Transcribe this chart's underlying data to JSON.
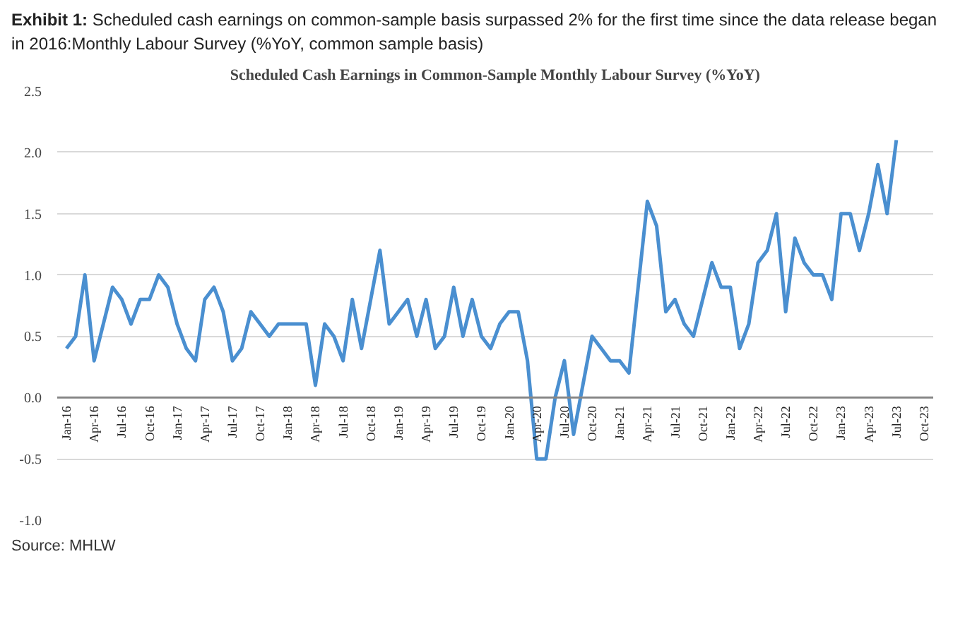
{
  "chart_data": {
    "type": "line",
    "title": "Exhibit 1: Scheduled cash earnings on common-sample basis surpassed 2% for the first time since the data release began in 2016:Monthly Labour Survey (%YoY, common sample basis)",
    "subtitle": "Scheduled Cash Earnings in Common-Sample Monthly Labour Survey (%YoY)",
    "annotations": [
      "Source: MHLW"
    ],
    "categories": [
      "Jan-16",
      null,
      null,
      "Apr-16",
      null,
      null,
      "Jul-16",
      null,
      null,
      "Oct-16",
      null,
      null,
      "Jan-17",
      null,
      null,
      "Apr-17",
      null,
      null,
      "Jul-17",
      null,
      null,
      "Oct-17",
      null,
      null,
      "Jan-18",
      null,
      null,
      "Apr-18",
      null,
      null,
      "Jul-18",
      null,
      null,
      "Oct-18",
      null,
      null,
      "Jan-19",
      null,
      null,
      "Apr-19",
      null,
      null,
      "Jul-19",
      null,
      null,
      "Oct-19",
      null,
      null,
      "Jan-20",
      null,
      null,
      "Apr-20",
      null,
      null,
      "Jul-20",
      null,
      null,
      "Oct-20",
      null,
      null,
      "Jan-21",
      null,
      null,
      "Apr-21",
      null,
      null,
      "Jul-21",
      null,
      null,
      "Oct-21",
      null,
      null,
      "Jan-22",
      null,
      null,
      "Apr-22",
      null,
      null,
      "Jul-22",
      null,
      null,
      "Oct-22",
      null,
      null,
      "Jan-23",
      null,
      null,
      "Apr-23",
      null,
      null,
      "Jul-23",
      null,
      null,
      "Oct-23"
    ],
    "series": [
      {
        "color": "#4a8fd0",
        "values": [
          0.4,
          0.5,
          1.0,
          0.3,
          0.6,
          0.9,
          0.8,
          0.6,
          0.8,
          0.8,
          1.0,
          0.9,
          0.6,
          0.4,
          0.3,
          0.8,
          0.9,
          0.7,
          0.3,
          0.4,
          0.7,
          0.6,
          0.5,
          0.6,
          0.6,
          0.6,
          0.6,
          0.1,
          0.6,
          0.5,
          0.3,
          0.8,
          0.4,
          0.8,
          1.2,
          0.6,
          0.7,
          0.8,
          0.5,
          0.8,
          0.4,
          0.5,
          0.9,
          0.5,
          0.8,
          0.5,
          0.4,
          0.6,
          0.7,
          0.7,
          0.3,
          -0.5,
          -0.5,
          0.0,
          0.3,
          -0.3,
          0.1,
          0.5,
          0.4,
          0.3,
          0.3,
          0.2,
          0.9,
          1.6,
          1.4,
          0.7,
          0.8,
          0.6,
          0.5,
          0.8,
          1.1,
          0.9,
          0.9,
          0.4,
          0.6,
          1.1,
          1.2,
          1.5,
          0.7,
          1.3,
          1.1,
          1.0,
          1.0,
          0.8,
          1.5,
          1.5,
          1.2,
          1.5,
          1.9,
          1.5,
          2.1,
          null,
          null,
          null
        ]
      }
    ],
    "ylim": [
      -1.0,
      2.5
    ],
    "yticks": [
      {
        "value": -1,
        "label": "-1.0"
      },
      -0.5,
      {
        "value": 0,
        "label": "0.0"
      },
      0.5,
      {
        "value": 1,
        "label": "1.0"
      },
      1.5,
      {
        "value": 2,
        "label": "2.0"
      },
      2.5
    ],
    "grid": "y",
    "marker": "none",
    "line_style": "solid"
  }
}
